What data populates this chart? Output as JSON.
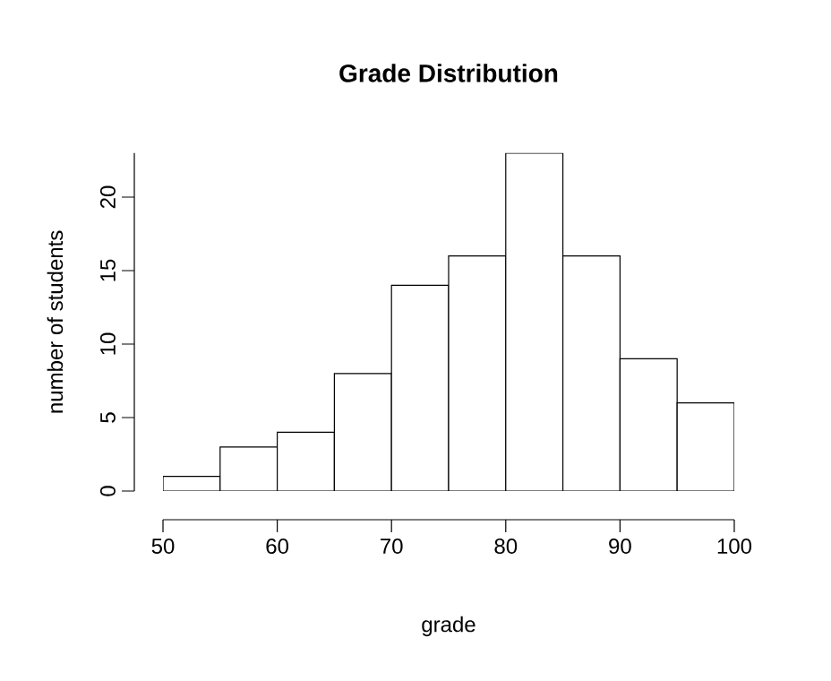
{
  "chart_data": {
    "type": "histogram",
    "title": "Grade Distribution",
    "xlabel": "grade",
    "ylabel": "number of students",
    "bins": [
      50,
      55,
      60,
      65,
      70,
      75,
      80,
      85,
      90,
      95,
      100
    ],
    "values": [
      1,
      3,
      4,
      8,
      14,
      16,
      23,
      16,
      9,
      6
    ],
    "color": "#ffffff",
    "xlim": [
      50,
      100
    ],
    "ylim": [
      0,
      23
    ],
    "xticks": [
      50,
      60,
      70,
      80,
      90,
      100
    ],
    "yticks": [
      0,
      5,
      10,
      15,
      20
    ]
  }
}
